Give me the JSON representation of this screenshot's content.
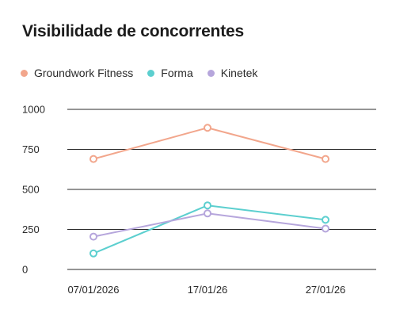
{
  "chart_data": {
    "type": "line",
    "title": "Visibilidade de concorrentes",
    "categories": [
      "07/01/2026",
      "17/01/26",
      "27/01/26"
    ],
    "series": [
      {
        "name": "Groundwork Fitness",
        "color": "#f2a68c",
        "values": [
          690,
          885,
          690
        ]
      },
      {
        "name": "Forma",
        "color": "#5ccfcf",
        "values": [
          100,
          400,
          310
        ]
      },
      {
        "name": "Kinetek",
        "color": "#b6a6dc",
        "values": [
          205,
          350,
          255
        ]
      }
    ],
    "y_ticks": [
      0,
      250,
      500,
      750,
      1000
    ],
    "ylim": [
      0,
      1000
    ],
    "grid": true,
    "legend_position": "top-left"
  }
}
